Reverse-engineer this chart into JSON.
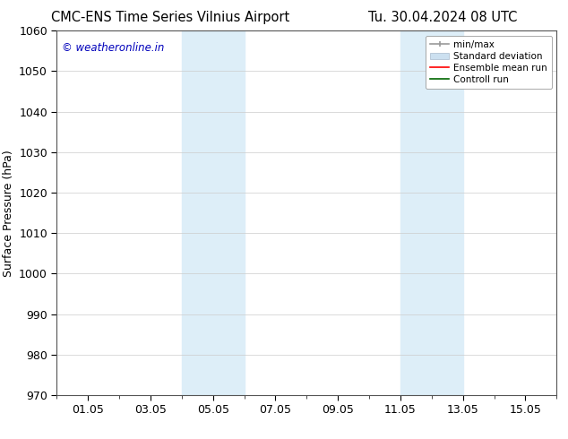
{
  "title_left": "CMC-ENS Time Series Vilnius Airport",
  "title_right": "Tu. 30.04.2024 08 UTC",
  "ylabel": "Surface Pressure (hPa)",
  "ylim": [
    970,
    1060
  ],
  "yticks": [
    970,
    980,
    990,
    1000,
    1010,
    1020,
    1030,
    1040,
    1050,
    1060
  ],
  "xtick_labels": [
    "01.05",
    "03.05",
    "05.05",
    "07.05",
    "09.05",
    "11.05",
    "13.05",
    "15.05"
  ],
  "xtick_positions": [
    1,
    3,
    5,
    7,
    9,
    11,
    13,
    15
  ],
  "xlim": [
    0,
    16
  ],
  "shaded_bands": [
    {
      "x_start": 4,
      "x_end": 6,
      "color": "#ddeef8"
    },
    {
      "x_start": 11,
      "x_end": 13,
      "color": "#ddeef8"
    }
  ],
  "watermark_text": "© weatheronline.in",
  "watermark_color": "#0000bb",
  "legend_entries": [
    {
      "label": "min/max",
      "color": "#aaaaaa",
      "type": "errorbar"
    },
    {
      "label": "Standard deviation",
      "color": "#cce0f0",
      "type": "band"
    },
    {
      "label": "Ensemble mean run",
      "color": "red",
      "type": "line"
    },
    {
      "label": "Controll run",
      "color": "green",
      "type": "line"
    }
  ],
  "background_color": "#ffffff",
  "grid_color": "#cccccc",
  "title_fontsize": 10.5,
  "axis_label_fontsize": 9,
  "tick_fontsize": 9
}
